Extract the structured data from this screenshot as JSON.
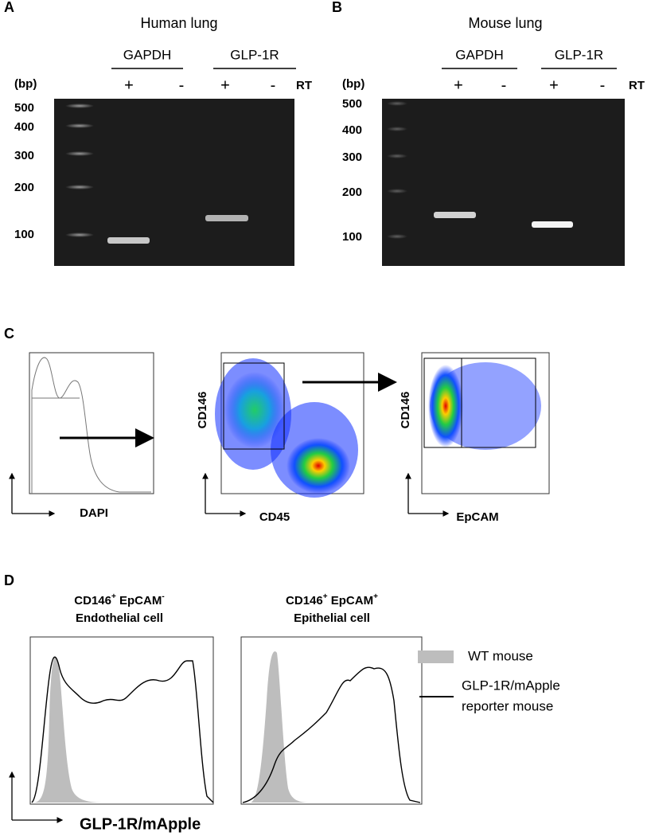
{
  "panels": [
    {
      "label": "A",
      "title": "Human lung",
      "genes": [
        "GAPDH",
        "GLP-1R"
      ],
      "size_unit": "(bp)",
      "rt_marks": [
        "+",
        "-",
        "+",
        "-"
      ],
      "rt_label": "RT",
      "ladder": [
        500,
        400,
        300,
        200,
        100
      ]
    },
    {
      "label": "B",
      "title": "Mouse lung",
      "genes": [
        "GAPDH",
        "GLP-1R"
      ],
      "size_unit": "(bp)",
      "rt_marks": [
        "+",
        "-",
        "+",
        "-"
      ],
      "rt_label": "RT",
      "ladder": [
        500,
        400,
        300,
        200,
        100
      ]
    },
    {
      "label": "C",
      "plots": [
        {
          "x_label": "DAPI"
        },
        {
          "x_label": "CD45",
          "y_label": "CD146"
        },
        {
          "x_label": "EpCAM",
          "y_label": "CD146"
        }
      ]
    },
    {
      "label": "D",
      "plots": [
        {
          "marker1": "CD146",
          "sign1": "+",
          "marker2": "EpCAM",
          "sign2": "-",
          "cell": "Endothelial cell"
        },
        {
          "marker1": "CD146",
          "sign1": "+",
          "marker2": "EpCAM",
          "sign2": "+",
          "cell": "Epithelial cell"
        }
      ],
      "legend": {
        "wt": "WT mouse",
        "reporter_line1": "GLP-1R/mApple",
        "reporter_line2": "reporter mouse"
      },
      "x_label": "GLP-1R/mApple"
    }
  ]
}
